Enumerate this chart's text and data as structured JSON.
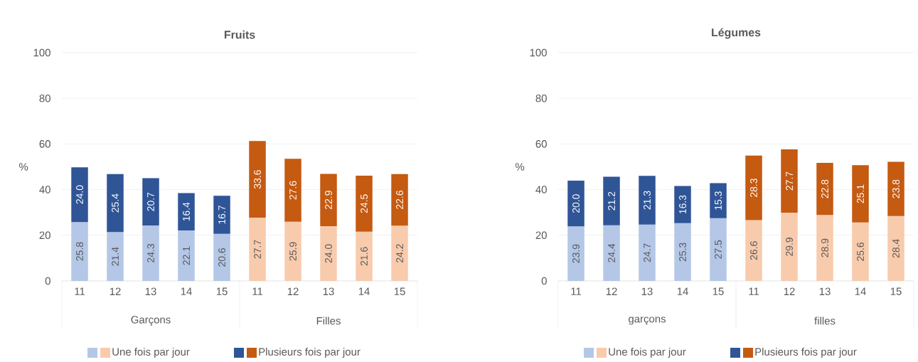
{
  "chart_data": [
    {
      "type": "bar",
      "title": "Fruits",
      "ylabel": "%",
      "categories": [
        "11",
        "12",
        "13",
        "14",
        "15",
        "11",
        "12",
        "13",
        "14",
        "15"
      ],
      "annotations": [
        "Garçons",
        "Filles"
      ],
      "stacked": true,
      "ylim": [
        0,
        100
      ],
      "yticks": [
        0,
        20,
        40,
        60,
        80,
        100
      ],
      "grid": "y",
      "legend": "bottom",
      "series": [
        {
          "name": "Une fois par jour",
          "colors": [
            "#b4c7e7",
            "#b4c7e7",
            "#b4c7e7",
            "#b4c7e7",
            "#b4c7e7",
            "#f8cbad",
            "#f8cbad",
            "#f8cbad",
            "#f8cbad",
            "#f8cbad"
          ],
          "values": [
            25.8,
            21.4,
            24.3,
            22.1,
            20.6,
            27.7,
            25.9,
            24.0,
            21.6,
            24.2
          ],
          "value_labels": [
            "25.8",
            "21.4",
            "24.3",
            "22.1",
            "20.6",
            "27.7",
            "25.9",
            "24.0",
            "21.6",
            "24.2"
          ]
        },
        {
          "name": "Plusieurs fois par jour",
          "colors": [
            "#2f5597",
            "#2f5597",
            "#2f5597",
            "#2f5597",
            "#2f5597",
            "#c55a11",
            "#c55a11",
            "#c55a11",
            "#c55a11",
            "#c55a11"
          ],
          "values": [
            24.0,
            25.4,
            20.7,
            16.4,
            16.7,
            33.6,
            27.6,
            22.9,
            24.5,
            22.6
          ],
          "value_labels": [
            "24.0",
            "25.4",
            "20.7",
            "16.4",
            "16.7",
            "33.6",
            "27.6",
            "22.9",
            "24.5",
            "22.6"
          ]
        }
      ]
    },
    {
      "type": "bar",
      "title": "Légumes",
      "ylabel": "%",
      "categories": [
        "11",
        "12",
        "13",
        "14",
        "15",
        "11",
        "12",
        "13",
        "14",
        "15"
      ],
      "annotations": [
        "garçons",
        "filles"
      ],
      "stacked": true,
      "ylim": [
        0,
        100
      ],
      "yticks": [
        0,
        20,
        40,
        60,
        80,
        100
      ],
      "grid": "y",
      "legend": "bottom",
      "series": [
        {
          "name": "Une fois par jour",
          "colors": [
            "#b4c7e7",
            "#b4c7e7",
            "#b4c7e7",
            "#b4c7e7",
            "#b4c7e7",
            "#f8cbad",
            "#f8cbad",
            "#f8cbad",
            "#f8cbad",
            "#f8cbad"
          ],
          "values": [
            23.9,
            24.4,
            24.7,
            25.3,
            27.5,
            26.6,
            29.9,
            28.9,
            25.6,
            28.4
          ],
          "value_labels": [
            "23.9",
            "24.4",
            "24.7",
            "25.3",
            "27.5",
            "26.6",
            "29.9",
            "28.9",
            "25.6",
            "28.4"
          ]
        },
        {
          "name": "Plusieurs fois par jour",
          "colors": [
            "#2f5597",
            "#2f5597",
            "#2f5597",
            "#2f5597",
            "#2f5597",
            "#c55a11",
            "#c55a11",
            "#c55a11",
            "#c55a11",
            "#c55a11"
          ],
          "values": [
            20.0,
            21.2,
            21.3,
            16.3,
            15.3,
            28.3,
            27.7,
            22.8,
            25.1,
            23.8
          ],
          "value_labels": [
            "20.0",
            "21.2",
            "21.3",
            "16.3",
            "15.3",
            "28.3",
            "27.7",
            "22.8",
            "25.1",
            "23.8"
          ]
        }
      ]
    }
  ]
}
